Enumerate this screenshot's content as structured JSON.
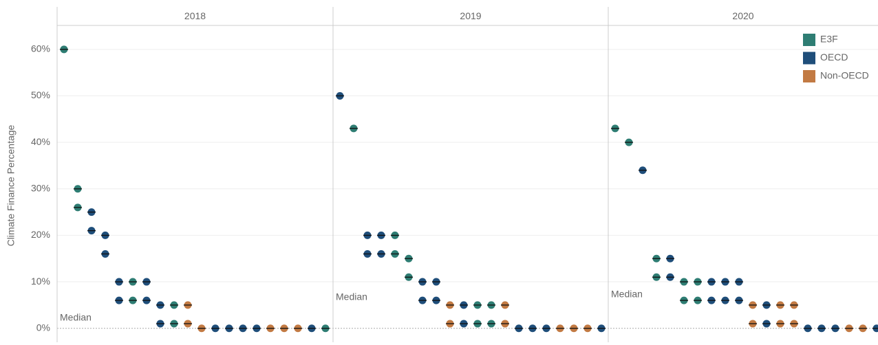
{
  "chart_data": {
    "type": "dot",
    "y_label": "Climate Finance Percentage",
    "ylim": [
      -3,
      65
    ],
    "yticks": [
      {
        "value": 0,
        "label": "0%"
      },
      {
        "value": 10,
        "label": "10%"
      },
      {
        "value": 20,
        "label": "20%"
      },
      {
        "value": 30,
        "label": "30%"
      },
      {
        "value": 40,
        "label": "40%"
      },
      {
        "value": 50,
        "label": "50%"
      },
      {
        "value": 60,
        "label": "60%"
      }
    ],
    "grid": true,
    "legend": "top-right",
    "series": [
      {
        "name": "E3F",
        "color": "#2e7d73"
      },
      {
        "name": "OECD",
        "color": "#1f4e7a"
      },
      {
        "name": "Non-OECD",
        "color": "#c27a43"
      }
    ],
    "panels": [
      {
        "title": "2018",
        "annotation": "Median",
        "categories": [
          null,
          null,
          null,
          null,
          null,
          null,
          null,
          null,
          null,
          null,
          null,
          null,
          null,
          null,
          null,
          null,
          null,
          null,
          null,
          null
        ],
        "series": [
          {
            "values": [
              [
                60
              ],
              [
                30,
                26
              ],
              null,
              null,
              null,
              [
                10,
                6
              ],
              null,
              null,
              [
                5,
                1
              ],
              null,
              null,
              null,
              null,
              null,
              null,
              null,
              null,
              null,
              null,
              [
                0
              ]
            ]
          },
          {
            "values": [
              null,
              null,
              [
                25,
                21
              ],
              [
                20,
                16
              ],
              [
                10,
                6
              ],
              null,
              [
                10,
                6
              ],
              [
                5,
                1
              ],
              null,
              null,
              null,
              [
                0
              ],
              [
                0
              ],
              [
                0
              ],
              [
                0
              ],
              null,
              null,
              null,
              [
                0
              ],
              null
            ]
          },
          {
            "values": [
              null,
              null,
              null,
              null,
              null,
              null,
              null,
              null,
              null,
              [
                5,
                1
              ],
              [
                0
              ],
              null,
              null,
              null,
              null,
              [
                0
              ],
              [
                0
              ],
              [
                0
              ],
              null,
              null
            ]
          }
        ]
      },
      {
        "title": "2019",
        "annotation": "Median",
        "categories": [
          null,
          null,
          null,
          null,
          null,
          null,
          null,
          null,
          null,
          null,
          null,
          null,
          null,
          null,
          null,
          null,
          null,
          null,
          null,
          null
        ],
        "series": [
          {
            "values": [
              null,
              [
                43
              ],
              null,
              null,
              [
                20,
                16
              ],
              [
                15,
                11
              ],
              null,
              null,
              null,
              null,
              [
                5,
                1
              ],
              [
                5,
                1
              ],
              null,
              null,
              null,
              null,
              null,
              null,
              null,
              null
            ]
          },
          {
            "values": [
              [
                50
              ],
              null,
              [
                20,
                16
              ],
              [
                20,
                16
              ],
              null,
              null,
              [
                10,
                6
              ],
              [
                10,
                6
              ],
              null,
              [
                5,
                1
              ],
              null,
              null,
              null,
              [
                0
              ],
              [
                0
              ],
              [
                0
              ],
              null,
              null,
              null,
              [
                0
              ]
            ]
          },
          {
            "values": [
              null,
              null,
              null,
              null,
              null,
              null,
              null,
              null,
              [
                5,
                1
              ],
              null,
              null,
              null,
              [
                5,
                1
              ],
              null,
              null,
              null,
              [
                0
              ],
              [
                0
              ],
              [
                0
              ],
              null
            ]
          }
        ]
      },
      {
        "title": "2020",
        "annotation": "Median",
        "categories": [
          null,
          null,
          null,
          null,
          null,
          null,
          null,
          null,
          null,
          null,
          null,
          null,
          null,
          null,
          null,
          null,
          null,
          null,
          null,
          null
        ],
        "series": [
          {
            "values": [
              [
                43
              ],
              [
                40
              ],
              null,
              [
                15,
                11
              ],
              null,
              [
                10,
                6
              ],
              [
                10,
                6
              ],
              null,
              null,
              null,
              null,
              null,
              null,
              null,
              null,
              null,
              null,
              null,
              null,
              null
            ]
          },
          {
            "values": [
              null,
              null,
              [
                34
              ],
              null,
              [
                15,
                11
              ],
              null,
              null,
              [
                10,
                6
              ],
              [
                10,
                6
              ],
              [
                10,
                6
              ],
              null,
              [
                5,
                1
              ],
              null,
              null,
              [
                0
              ],
              [
                0
              ],
              [
                0
              ],
              null,
              null,
              [
                0
              ]
            ]
          },
          {
            "values": [
              null,
              null,
              null,
              null,
              null,
              null,
              null,
              null,
              null,
              null,
              [
                5,
                1
              ],
              null,
              [
                5,
                1
              ],
              [
                5,
                1
              ],
              null,
              null,
              null,
              [
                0
              ],
              [
                0
              ],
              null
            ]
          }
        ]
      }
    ]
  }
}
